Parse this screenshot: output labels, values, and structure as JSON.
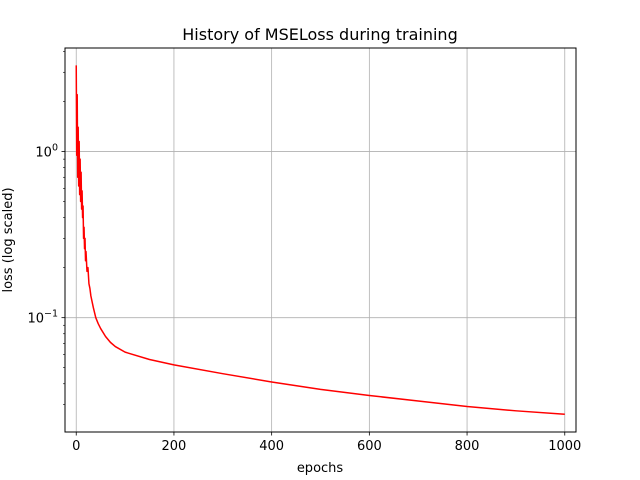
{
  "chart_data": {
    "type": "line",
    "title": "History of MSELoss during training",
    "xlabel": "epochs",
    "ylabel": "loss (log scaled)",
    "xscale": "linear",
    "yscale": "log",
    "xlim": [
      -23,
      1023
    ],
    "ylim": [
      0.0205,
      4.2
    ],
    "grid": true,
    "xticks": [
      0,
      200,
      400,
      600,
      800,
      1000
    ],
    "xtick_labels": [
      "0",
      "200",
      "400",
      "600",
      "800",
      "1000"
    ],
    "yticks": [
      1,
      0.1
    ],
    "ytick_labels": [
      {
        "base": "10",
        "exp": "0"
      },
      {
        "base": "10",
        "exp": "−1"
      }
    ],
    "series": [
      {
        "color": "#ff0000",
        "x": [
          0,
          1,
          2,
          3,
          4,
          5,
          6,
          7,
          8,
          9,
          10,
          11,
          12,
          13,
          14,
          15,
          16,
          17,
          18,
          19,
          20,
          22,
          24,
          26,
          28,
          30,
          35,
          40,
          45,
          50,
          60,
          70,
          80,
          100,
          150,
          200,
          300,
          400,
          500,
          600,
          700,
          800,
          900,
          1000
        ],
        "y": [
          3.3,
          0.95,
          2.2,
          0.7,
          1.4,
          0.62,
          1.15,
          0.55,
          0.9,
          0.5,
          0.75,
          0.45,
          0.58,
          0.4,
          0.47,
          0.3,
          0.35,
          0.26,
          0.3,
          0.22,
          0.25,
          0.19,
          0.2,
          0.16,
          0.15,
          0.135,
          0.115,
          0.1,
          0.092,
          0.086,
          0.077,
          0.071,
          0.067,
          0.062,
          0.056,
          0.052,
          0.046,
          0.041,
          0.037,
          0.034,
          0.0315,
          0.0292,
          0.0275,
          0.0262
        ]
      }
    ]
  }
}
